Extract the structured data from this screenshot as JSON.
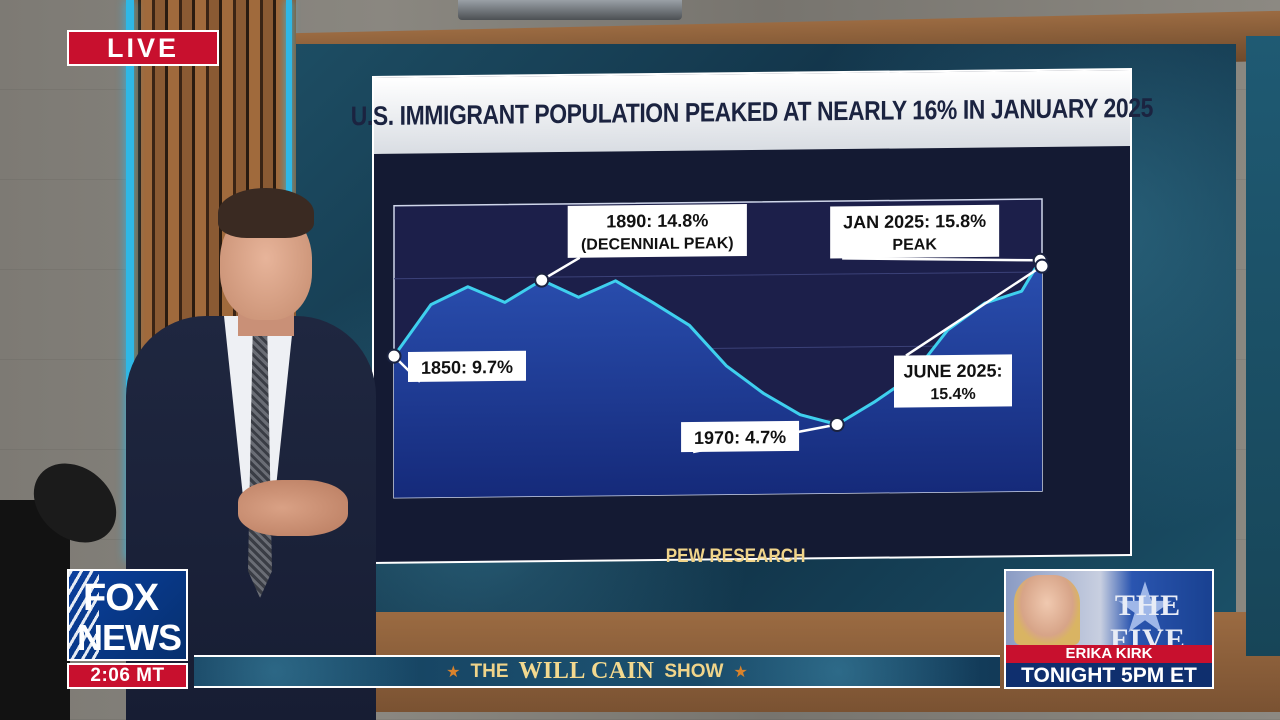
{
  "broadcast": {
    "live_label": "LIVE",
    "network_top": "FOX",
    "network_bottom": "NEWS",
    "clock": "2:06 MT",
    "show": {
      "prefix": "THE",
      "name": "WILL CAIN",
      "suffix": "SHOW"
    },
    "promo": {
      "program": "THE FIVE",
      "host": "ERIKA KIRK",
      "time": "TONIGHT 5PM ET"
    }
  },
  "chart_data": {
    "type": "area",
    "title": "U.S. IMMIGRANT POPULATION PEAKED AT NEARLY 16% IN JANUARY 2025",
    "source": "PEW RESEARCH",
    "xlabel": "",
    "ylabel": "",
    "x": [
      1850,
      1860,
      1870,
      1880,
      1890,
      1900,
      1910,
      1920,
      1930,
      1940,
      1950,
      1960,
      1970,
      1980,
      1990,
      2000,
      2010,
      2020,
      2025.0,
      2025.5
    ],
    "values": [
      9.7,
      13.2,
      14.4,
      13.3,
      14.8,
      13.6,
      14.7,
      13.2,
      11.6,
      8.8,
      6.9,
      5.4,
      4.7,
      6.2,
      7.9,
      11.1,
      12.9,
      13.7,
      15.8,
      15.4
    ],
    "ylim": [
      0,
      20
    ],
    "grid": true,
    "annotations": [
      {
        "x": 1850,
        "y": 9.7,
        "lines": [
          "1850: 9.7%"
        ]
      },
      {
        "x": 1890,
        "y": 14.8,
        "lines": [
          "1890: 14.8%",
          "(DECENNIAL PEAK)"
        ]
      },
      {
        "x": 1970,
        "y": 4.7,
        "lines": [
          "1970: 4.7%"
        ]
      },
      {
        "x": 2025.0,
        "y": 15.8,
        "lines": [
          "JAN 2025: 15.8%",
          "PEAK"
        ]
      },
      {
        "x": 2025.5,
        "y": 15.4,
        "lines": [
          "JUNE 2025:",
          "15.4%"
        ]
      }
    ],
    "colors": {
      "line": "#3fd0ee",
      "area_top": "#2a4fb0",
      "area_bottom": "#152a7a",
      "plot_bg": "#1c1f4a",
      "label_bg": "#ffffff",
      "label_text": "#111111"
    }
  }
}
